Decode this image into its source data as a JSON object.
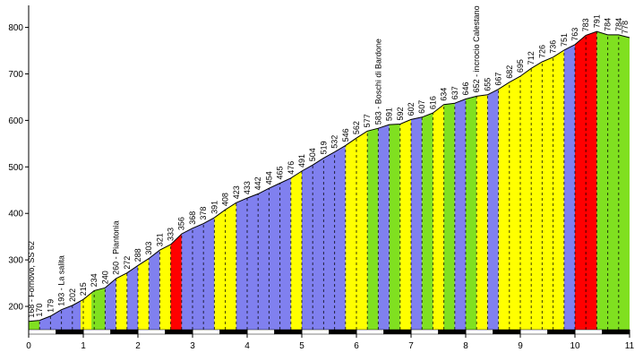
{
  "chart_data": {
    "type": "area",
    "title": "",
    "xlabel": "",
    "ylabel": "",
    "xlim": [
      0,
      11
    ],
    "ylim": [
      150,
      830
    ],
    "x_ticks": [
      "0",
      "1",
      "2",
      "3",
      "4",
      "5",
      "6",
      "7",
      "8",
      "9",
      "10",
      "11"
    ],
    "y_ticks": [
      "200",
      "300",
      "400",
      "500",
      "600",
      "700",
      "800"
    ],
    "grid": false,
    "legend": "none",
    "segment_colors": {
      "green": "#80e020",
      "yellow": "#ffff00",
      "blue": "#8080ef",
      "red": "#ff0000"
    },
    "segments": [
      {
        "x0": 0.0,
        "x1": 0.2,
        "color": "green"
      },
      {
        "x0": 0.2,
        "x1": 0.95,
        "color": "blue"
      },
      {
        "x0": 0.95,
        "x1": 1.15,
        "color": "yellow"
      },
      {
        "x0": 1.15,
        "x1": 1.4,
        "color": "green"
      },
      {
        "x0": 1.4,
        "x1": 1.6,
        "color": "blue"
      },
      {
        "x0": 1.6,
        "x1": 1.8,
        "color": "yellow"
      },
      {
        "x0": 1.8,
        "x1": 2.0,
        "color": "blue"
      },
      {
        "x0": 2.0,
        "x1": 2.2,
        "color": "yellow"
      },
      {
        "x0": 2.2,
        "x1": 2.4,
        "color": "blue"
      },
      {
        "x0": 2.4,
        "x1": 2.6,
        "color": "yellow"
      },
      {
        "x0": 2.6,
        "x1": 2.8,
        "color": "red"
      },
      {
        "x0": 2.8,
        "x1": 3.4,
        "color": "blue"
      },
      {
        "x0": 3.4,
        "x1": 3.8,
        "color": "yellow"
      },
      {
        "x0": 3.8,
        "x1": 4.8,
        "color": "blue"
      },
      {
        "x0": 4.8,
        "x1": 5.0,
        "color": "yellow"
      },
      {
        "x0": 5.0,
        "x1": 5.8,
        "color": "blue"
      },
      {
        "x0": 5.8,
        "x1": 6.2,
        "color": "yellow"
      },
      {
        "x0": 6.2,
        "x1": 6.4,
        "color": "green"
      },
      {
        "x0": 6.4,
        "x1": 6.6,
        "color": "blue"
      },
      {
        "x0": 6.6,
        "x1": 6.8,
        "color": "green"
      },
      {
        "x0": 6.8,
        "x1": 7.0,
        "color": "yellow"
      },
      {
        "x0": 7.0,
        "x1": 7.2,
        "color": "blue"
      },
      {
        "x0": 7.2,
        "x1": 7.4,
        "color": "green"
      },
      {
        "x0": 7.4,
        "x1": 7.6,
        "color": "yellow"
      },
      {
        "x0": 7.6,
        "x1": 7.8,
        "color": "green"
      },
      {
        "x0": 7.8,
        "x1": 8.0,
        "color": "blue"
      },
      {
        "x0": 8.0,
        "x1": 8.2,
        "color": "green"
      },
      {
        "x0": 8.2,
        "x1": 8.4,
        "color": "yellow"
      },
      {
        "x0": 8.4,
        "x1": 8.6,
        "color": "blue"
      },
      {
        "x0": 8.6,
        "x1": 9.0,
        "color": "yellow"
      },
      {
        "x0": 9.0,
        "x1": 9.4,
        "color": "yellow"
      },
      {
        "x0": 9.4,
        "x1": 9.8,
        "color": "yellow"
      },
      {
        "x0": 9.8,
        "x1": 10.0,
        "color": "blue"
      },
      {
        "x0": 10.0,
        "x1": 10.4,
        "color": "red"
      },
      {
        "x0": 10.4,
        "x1": 11.0,
        "color": "green"
      }
    ],
    "points": [
      {
        "x": 0.0,
        "y": 168,
        "label": "168 - Fornovo, SS 62"
      },
      {
        "x": 0.2,
        "y": 170,
        "label": "170"
      },
      {
        "x": 0.4,
        "y": 179,
        "label": "179"
      },
      {
        "x": 0.6,
        "y": 193,
        "label": "193 - La salita"
      },
      {
        "x": 0.8,
        "y": 202,
        "label": "202"
      },
      {
        "x": 1.0,
        "y": 215,
        "label": "215"
      },
      {
        "x": 1.2,
        "y": 234,
        "label": "234"
      },
      {
        "x": 1.4,
        "y": 240,
        "label": "240"
      },
      {
        "x": 1.6,
        "y": 260,
        "label": "260 - Piantonia"
      },
      {
        "x": 1.8,
        "y": 272,
        "label": "272"
      },
      {
        "x": 2.0,
        "y": 288,
        "label": "288"
      },
      {
        "x": 2.2,
        "y": 303,
        "label": "303"
      },
      {
        "x": 2.4,
        "y": 321,
        "label": "321"
      },
      {
        "x": 2.6,
        "y": 333,
        "label": "333"
      },
      {
        "x": 2.8,
        "y": 356,
        "label": "356"
      },
      {
        "x": 3.0,
        "y": 368,
        "label": "368"
      },
      {
        "x": 3.2,
        "y": 378,
        "label": "378"
      },
      {
        "x": 3.4,
        "y": 391,
        "label": "391"
      },
      {
        "x": 3.6,
        "y": 408,
        "label": "408"
      },
      {
        "x": 3.8,
        "y": 423,
        "label": "423"
      },
      {
        "x": 4.0,
        "y": 433,
        "label": "433"
      },
      {
        "x": 4.2,
        "y": 442,
        "label": "442"
      },
      {
        "x": 4.4,
        "y": 454,
        "label": "454"
      },
      {
        "x": 4.6,
        "y": 465,
        "label": "465"
      },
      {
        "x": 4.8,
        "y": 476,
        "label": "476"
      },
      {
        "x": 5.0,
        "y": 491,
        "label": "491"
      },
      {
        "x": 5.2,
        "y": 504,
        "label": "504"
      },
      {
        "x": 5.4,
        "y": 519,
        "label": "519"
      },
      {
        "x": 5.6,
        "y": 532,
        "label": "532"
      },
      {
        "x": 5.8,
        "y": 546,
        "label": "546"
      },
      {
        "x": 6.0,
        "y": 562,
        "label": "562"
      },
      {
        "x": 6.2,
        "y": 577,
        "label": "577"
      },
      {
        "x": 6.4,
        "y": 583,
        "label": "583 - Boschi di Bardone"
      },
      {
        "x": 6.6,
        "y": 591,
        "label": "591"
      },
      {
        "x": 6.8,
        "y": 592,
        "label": "592"
      },
      {
        "x": 7.0,
        "y": 602,
        "label": "602"
      },
      {
        "x": 7.2,
        "y": 607,
        "label": "607"
      },
      {
        "x": 7.4,
        "y": 616,
        "label": "616"
      },
      {
        "x": 7.6,
        "y": 634,
        "label": "634"
      },
      {
        "x": 7.8,
        "y": 637,
        "label": "637"
      },
      {
        "x": 8.0,
        "y": 646,
        "label": "646"
      },
      {
        "x": 8.2,
        "y": 652,
        "label": "652 - incrocio Calestano"
      },
      {
        "x": 8.4,
        "y": 655,
        "label": "655"
      },
      {
        "x": 8.6,
        "y": 667,
        "label": "667"
      },
      {
        "x": 8.8,
        "y": 682,
        "label": "682"
      },
      {
        "x": 9.0,
        "y": 695,
        "label": "695"
      },
      {
        "x": 9.2,
        "y": 712,
        "label": "712"
      },
      {
        "x": 9.4,
        "y": 726,
        "label": "726"
      },
      {
        "x": 9.6,
        "y": 736,
        "label": "736"
      },
      {
        "x": 9.8,
        "y": 751,
        "label": "751"
      },
      {
        "x": 10.0,
        "y": 763,
        "label": "763"
      },
      {
        "x": 10.2,
        "y": 783,
        "label": "783"
      },
      {
        "x": 10.4,
        "y": 791,
        "label": "791"
      },
      {
        "x": 10.6,
        "y": 784,
        "label": "784"
      },
      {
        "x": 10.8,
        "y": 784,
        "label": "784"
      },
      {
        "x": 11.0,
        "y": 778,
        "label": "778"
      }
    ]
  }
}
